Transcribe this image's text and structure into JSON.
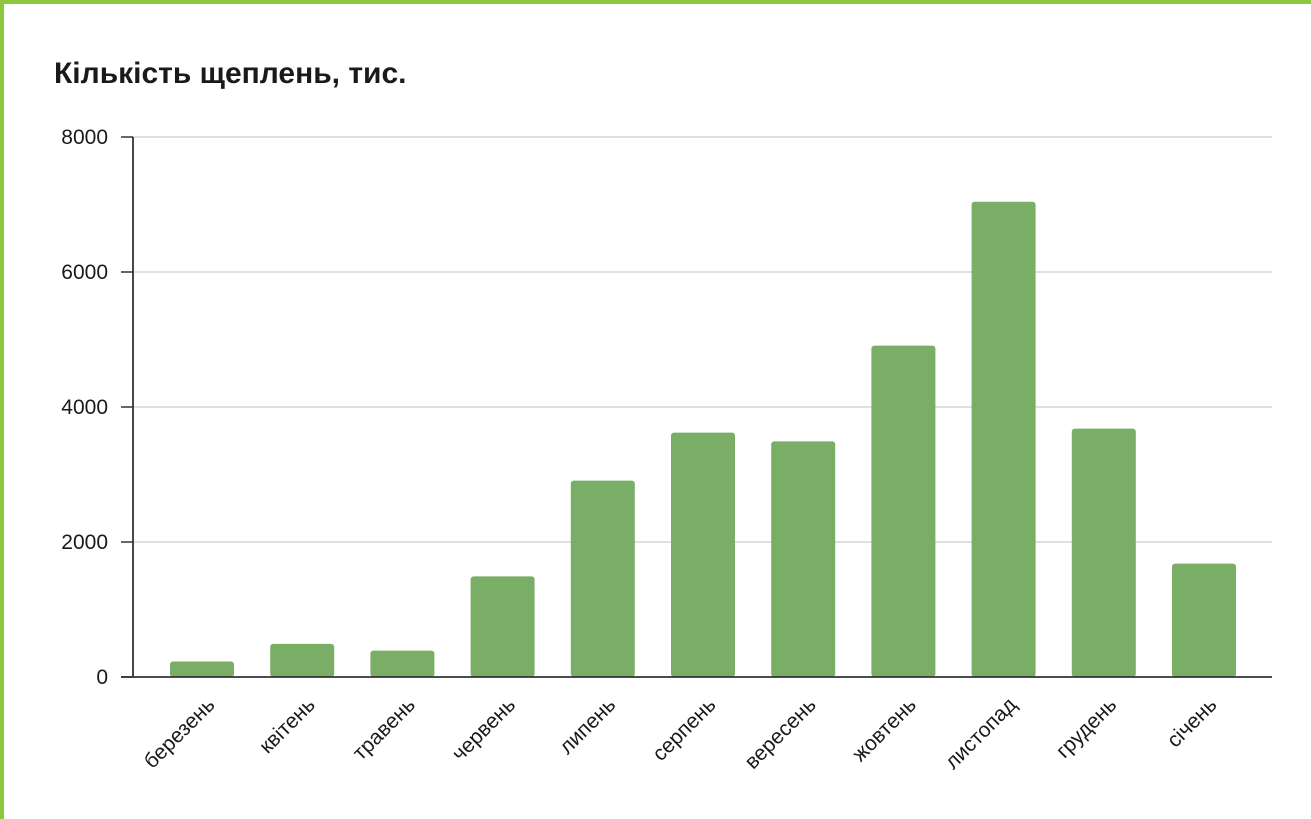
{
  "chart_data": {
    "type": "bar",
    "title": "Кількість щеплень, тис.",
    "xlabel": "",
    "ylabel": "",
    "categories": [
      "березень",
      "квітень",
      "травень",
      "червень",
      "липень",
      "серпень",
      "вересень",
      "жовтень",
      "листопад",
      "грудень",
      "січень"
    ],
    "values": [
      230,
      490,
      390,
      1490,
      2910,
      3620,
      3490,
      4910,
      7040,
      3680,
      1680
    ],
    "ylim": [
      0,
      8000
    ],
    "yticks": [
      "0",
      "2000",
      "4000",
      "6000",
      "8000"
    ],
    "grid": true,
    "legend": "none",
    "bar_color": "#7aae66",
    "frame_color": "#8dc63f"
  }
}
